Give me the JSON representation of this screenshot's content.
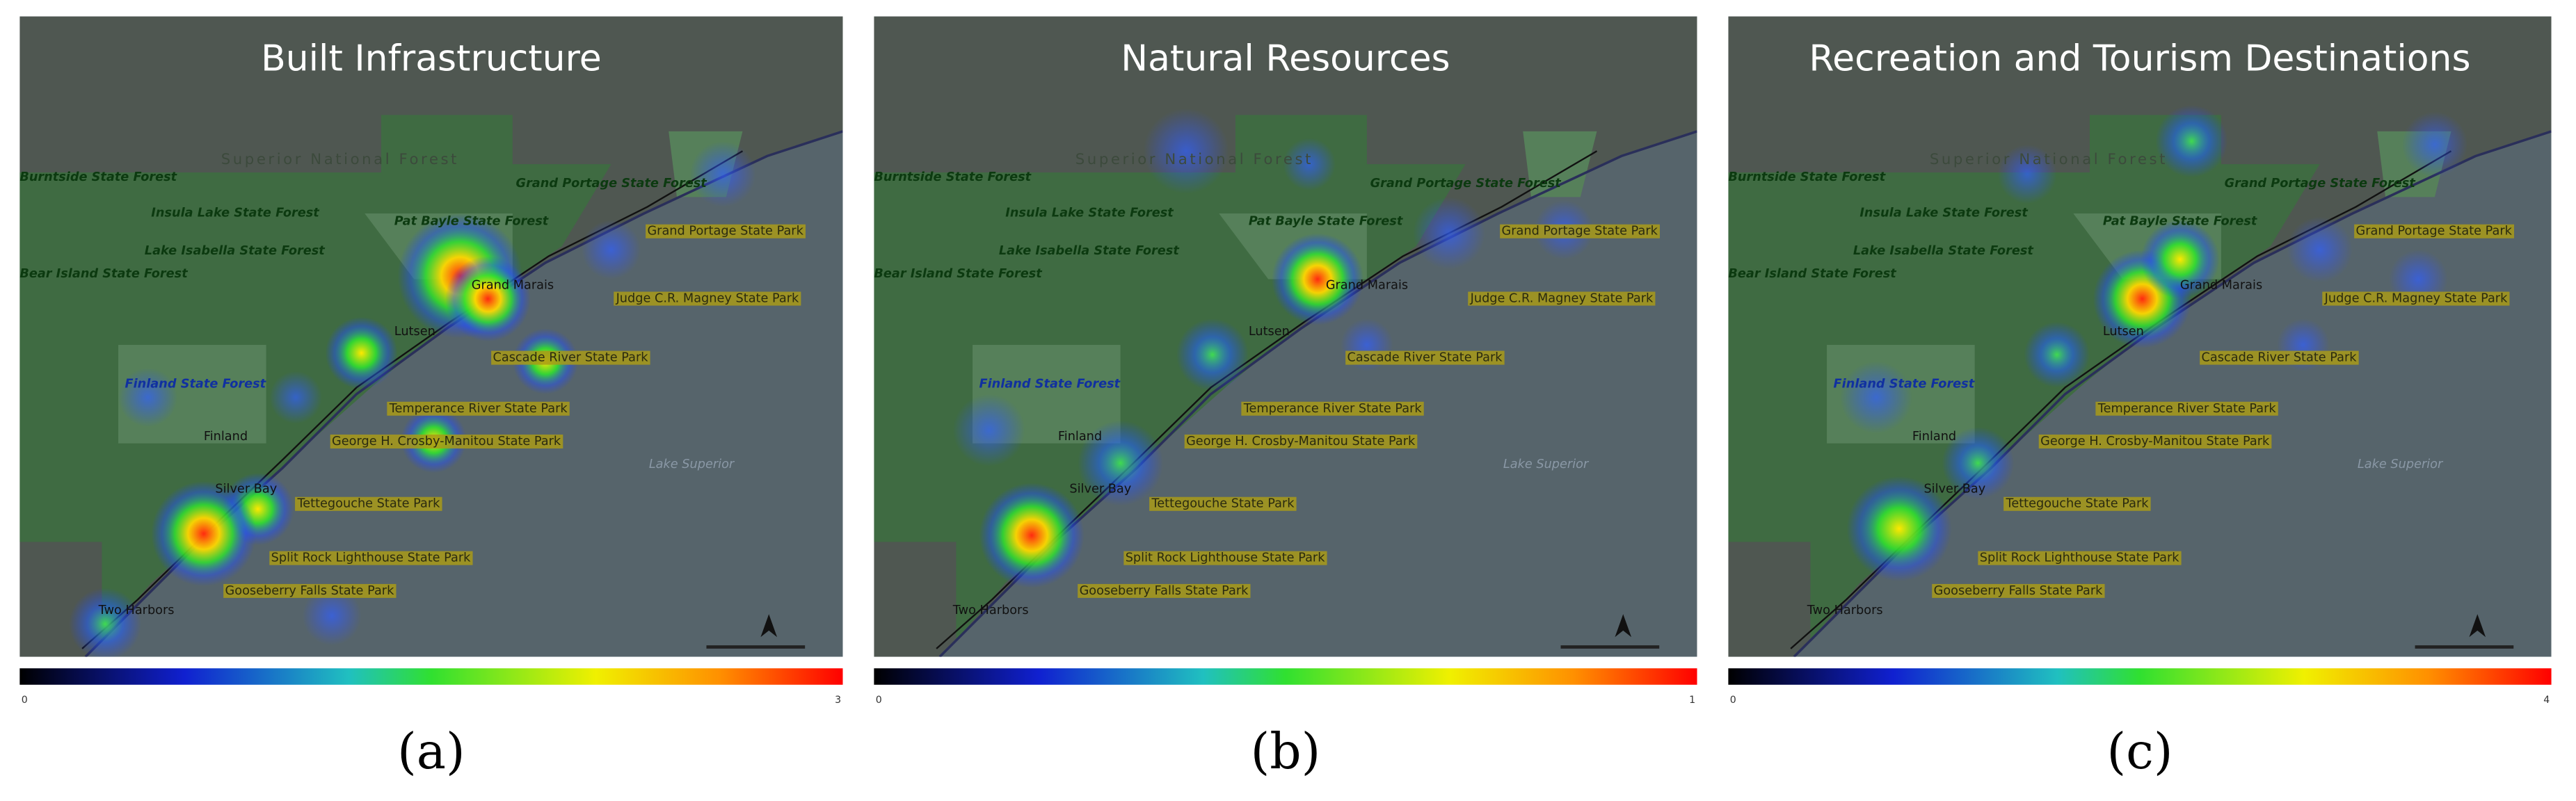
{
  "panels": [
    {
      "title": "Built Infrastructure",
      "label": "(a)",
      "colorbar_ticks": [
        0,
        3
      ]
    },
    {
      "title": "Natural Resources",
      "label": "(b)",
      "colorbar_ticks": [
        0,
        1
      ]
    },
    {
      "title": "Recreation and Tourism Destinations",
      "label": "(c)",
      "colorbar_ticks": [
        0,
        4
      ]
    }
  ],
  "place_labels": [
    "Superior National Forest",
    "Burntside State Forest",
    "Insula Lake State Forest",
    "Lake Isabella State Forest",
    "Bear Island State Forest",
    "Pat Bayle State Forest",
    "Grand Portage State Forest",
    "Grand Portage State Park",
    "Judge C.R. Magney State Park",
    "Grand Marais",
    "Lutsen",
    "Cascade River State Park",
    "Finland State Forest",
    "Temperance River State Park",
    "George H. Crosby-Manitou State Park",
    "Finland",
    "Lake Superior",
    "Silver Bay",
    "Tettegouche State Park",
    "Split Rock Lighthouse State Park",
    "Gooseberry Falls State Park",
    "Two Harbors"
  ]
}
